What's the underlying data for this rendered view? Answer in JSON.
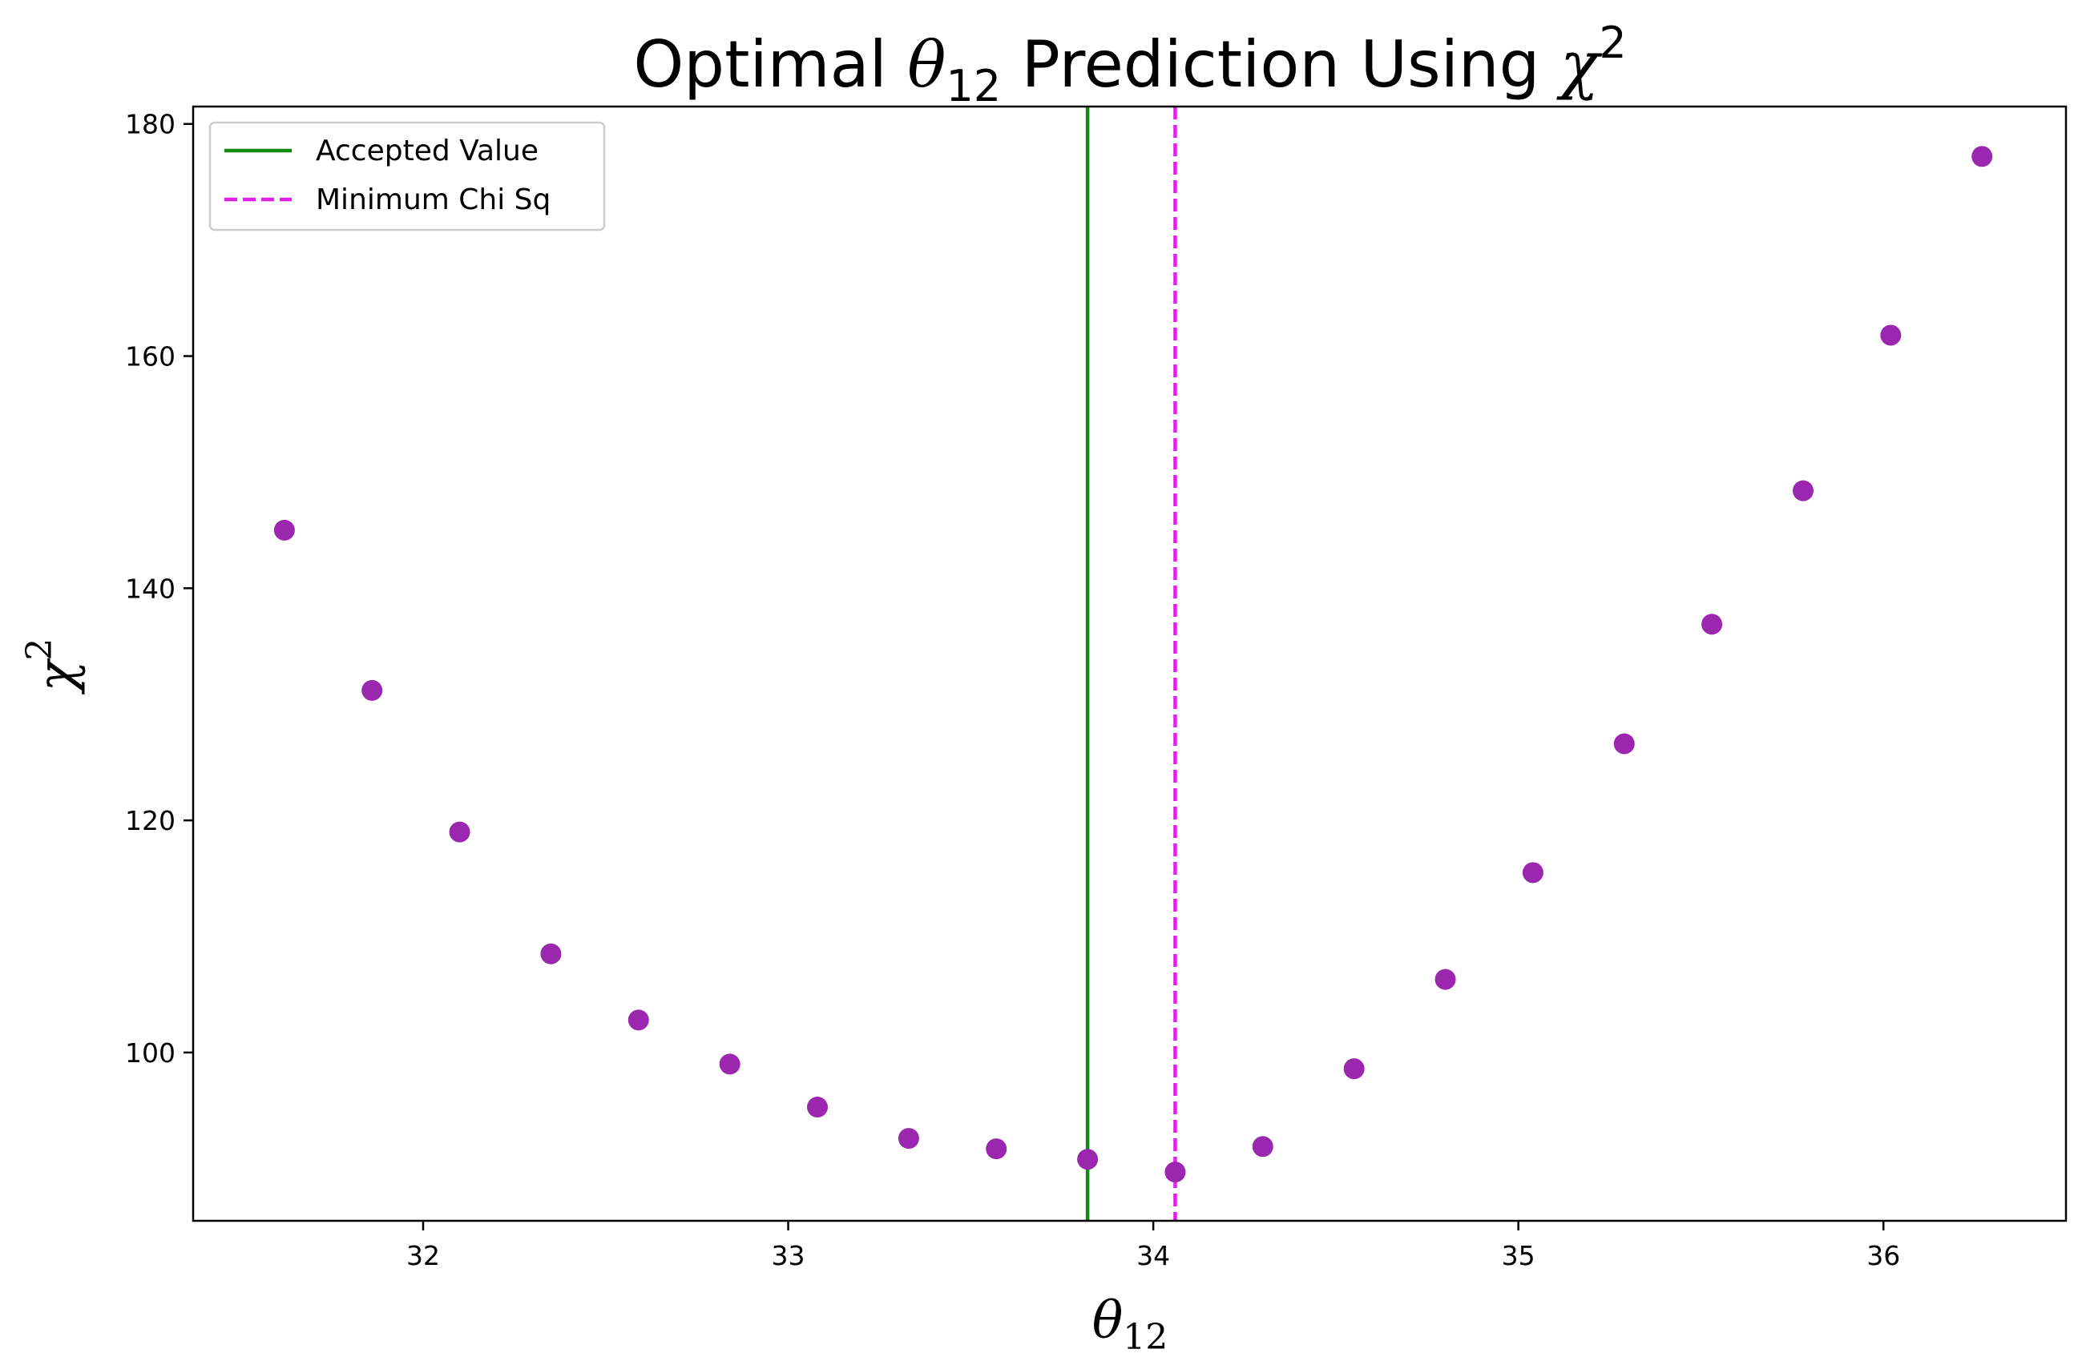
{
  "chart_data": {
    "type": "scatter",
    "title": {
      "prefix": "Optimal ",
      "theta": "θ",
      "theta_sub": "12",
      "middle": " Prediction Using ",
      "chi": "χ",
      "chi_sup": "2"
    },
    "xlabel": {
      "symbol": "θ",
      "sub": "12"
    },
    "ylabel": {
      "symbol": "χ",
      "sup": "2"
    },
    "xlim": [
      31.37,
      36.5
    ],
    "ylim": [
      85.5,
      181.5
    ],
    "xticks": [
      32,
      33,
      34,
      35,
      36
    ],
    "yticks": [
      100,
      120,
      140,
      160,
      180
    ],
    "grid": false,
    "legend_position": "upper-left",
    "series": [
      {
        "type": "scatter",
        "color": "#9b27af",
        "x": [
          31.62,
          31.86,
          32.1,
          32.35,
          32.59,
          32.84,
          33.08,
          33.33,
          33.57,
          33.82,
          34.06,
          34.3,
          34.55,
          34.8,
          35.04,
          35.29,
          35.53,
          35.78,
          36.02,
          36.27
        ],
        "y": [
          145.0,
          131.2,
          119.0,
          108.5,
          102.8,
          99.0,
          95.3,
          92.6,
          91.7,
          90.8,
          89.7,
          91.9,
          98.6,
          106.3,
          115.5,
          126.6,
          136.9,
          148.4,
          161.8,
          177.2
        ]
      }
    ],
    "vlines": [
      {
        "name": "Accepted Value",
        "x": 33.82,
        "color": "#118c11",
        "style": "solid"
      },
      {
        "name": "Minimum Chi Sq",
        "x": 34.06,
        "color": "#e020e8",
        "style": "dashed"
      }
    ]
  }
}
